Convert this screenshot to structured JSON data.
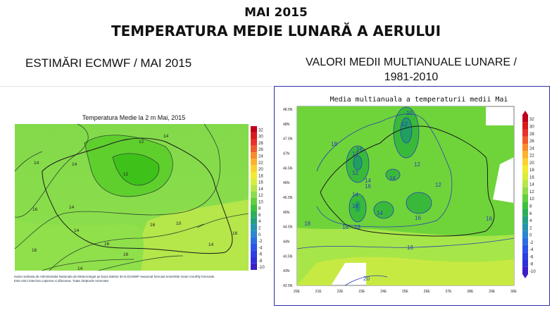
{
  "header": {
    "title_month": "MAI 2015",
    "title_main": "TEMPERATURA MEDIE LUNARĂ A AERULUI",
    "left_subtitle": "ESTIMĂRI ECMWF / MAI 2015",
    "right_subtitle_line1": "VALORI MEDII MULTIANUALE LUNARE /",
    "right_subtitle_line2": "1981-2010"
  },
  "left_map": {
    "title": "Temperatura Medie la 2 m Mai, 2015",
    "colorbar": [
      "32",
      "30",
      "28",
      "26",
      "24",
      "22",
      "20",
      "18",
      "16",
      "14",
      "12",
      "10",
      "8",
      "6",
      "4",
      "2",
      "0",
      "-2",
      "-4",
      "-6",
      "-8",
      "-10"
    ],
    "contour_labels": [
      "16",
      "14",
      "12",
      "14",
      "12",
      "14",
      "14",
      "16",
      "16",
      "10",
      "16",
      "14",
      "16",
      "14",
      "16",
      "14"
    ],
    "footnote_line1": "Harta realizata de Administratia Nationala de Meteorologie pe baza datelor de la ECMWF-seasonal forecast ensemble mean monthly forecasts",
    "footnote_line2": "Este strict interzisa copierea si difuzarea. Toate drepturile rezervate."
  },
  "right_map": {
    "title": "Media multianuala a temperaturii medii Mai",
    "colorbar": [
      "32",
      "30",
      "28",
      "26",
      "24",
      "22",
      "20",
      "18",
      "16",
      "14",
      "12",
      "10",
      "8",
      "6",
      "4",
      "2",
      "0",
      "-2",
      "-4",
      "-6",
      "-8",
      "-10"
    ],
    "lat_labels": [
      "48.5N",
      "48N",
      "47.5N",
      "47N",
      "46.5N",
      "46N",
      "45.5N",
      "45N",
      "44.5N",
      "44N",
      "43.5N",
      "43N",
      "42.5N"
    ],
    "lon_labels": [
      "20E",
      "21E",
      "22E",
      "23E",
      "24E",
      "25E",
      "26E",
      "27E",
      "28E",
      "29E",
      "30E"
    ],
    "contour_labels": [
      "10",
      "12",
      "18",
      "16",
      "14",
      "12",
      "14",
      "16",
      "16",
      "12",
      "14",
      "12",
      "14",
      "18",
      "16",
      "18",
      "14",
      "16",
      "16",
      "18",
      "20"
    ]
  },
  "colors": {
    "map_green": "#8fe04a",
    "map_darkgreen": "#3ec21a",
    "map_yellowgreen": "#bfe84a",
    "contour_left": "#2f4a2f",
    "contour_right": "#2b3fb5",
    "frame_blue": "#2b2fb0"
  }
}
